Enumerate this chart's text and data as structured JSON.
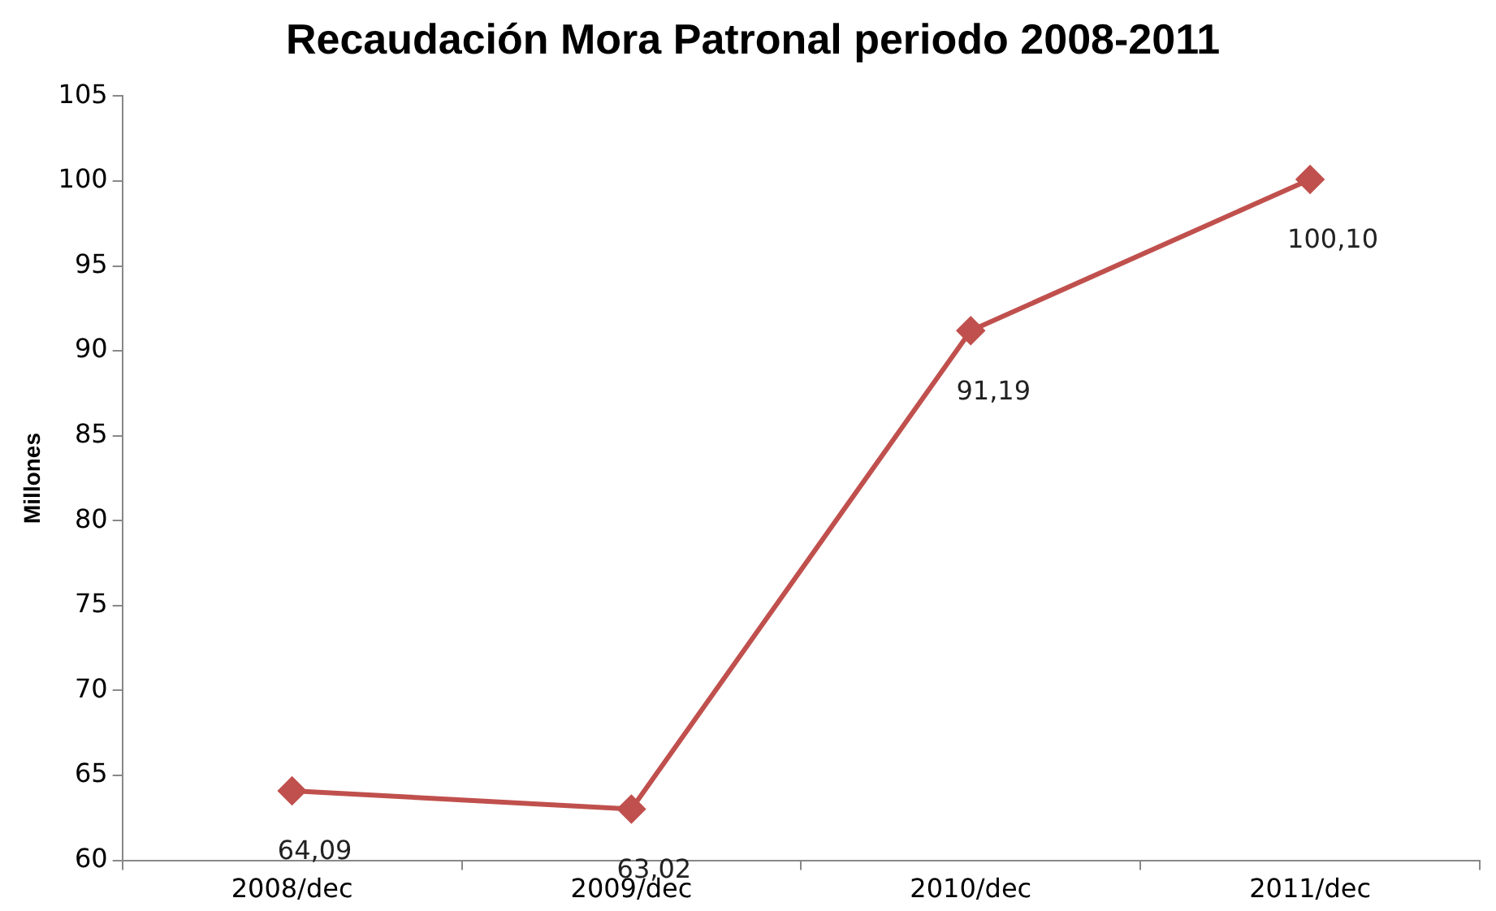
{
  "chart_data": {
    "type": "line",
    "title": "Recaudación Mora Patronal periodo 2008-2011",
    "ylabel": "Millones",
    "categories": [
      "2008/dec",
      "2009/dec",
      "2010/dec",
      "2011/dec"
    ],
    "series": [
      {
        "color": "#c0504d",
        "values": [
          64.09,
          63.02,
          91.19,
          100.1
        ],
        "value_labels": [
          "64,09",
          "63,02",
          "91,19",
          "100,10"
        ]
      }
    ],
    "ylim": [
      60,
      105
    ],
    "yticks": [
      60,
      65,
      70,
      75,
      80,
      85,
      90,
      95,
      100,
      105
    ],
    "grid": false,
    "legend": false,
    "marker": "diamond",
    "line_style": "solid"
  }
}
